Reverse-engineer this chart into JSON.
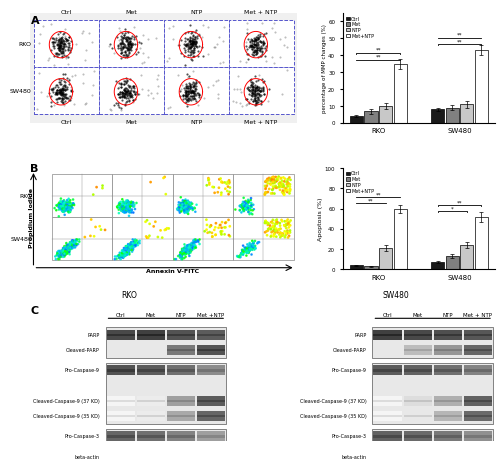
{
  "panel_A_label": "A",
  "panel_B_label": "B",
  "panel_C_label": "C",
  "mmp_groups": [
    "RKO",
    "SW480"
  ],
  "mmp_categories": [
    "Ctrl",
    "Met",
    "NTP",
    "Met+NTP"
  ],
  "mmp_values": {
    "RKO": [
      4,
      7,
      10,
      35
    ],
    "SW480": [
      8,
      9,
      11,
      43
    ]
  },
  "mmp_errors": {
    "RKO": [
      0.5,
      1.5,
      2,
      3
    ],
    "SW480": [
      1,
      1.5,
      2,
      3
    ]
  },
  "mmp_ylabel": "percentage of MMP changes (%)",
  "mmp_ylim": [
    0,
    65
  ],
  "apoptosis_groups": [
    "RKO",
    "SW480"
  ],
  "apoptosis_categories": [
    "Ctrl",
    "Met",
    "NTP",
    "Met+NTP"
  ],
  "apoptosis_values": {
    "RKO": [
      4,
      3,
      21,
      60
    ],
    "SW480": [
      7,
      13,
      24,
      52
    ]
  },
  "apoptosis_errors": {
    "RKO": [
      0.5,
      0.5,
      3,
      4
    ],
    "SW480": [
      1,
      2,
      3,
      5
    ]
  },
  "apoptosis_ylabel": "Apoptosis (%)",
  "apoptosis_ylim": [
    0,
    100
  ],
  "bar_colors": [
    "#1a1a1a",
    "#808080",
    "#c8c8c8",
    "#ffffff"
  ],
  "bar_edge_color": "#000000",
  "legend_labels": [
    "Ctrl",
    "Met",
    "NTP",
    "Met+NTP"
  ],
  "wb_conditions_rko": [
    "Ctrl",
    "Met",
    "NTP",
    "Met +NTP"
  ],
  "wb_conditions_sw480": [
    "Ctrl",
    "Met",
    "NTP",
    "Met + NTP"
  ],
  "flow_columns_A": [
    "Ctrl",
    "Met",
    "NTP",
    "Met + NTP"
  ],
  "flow_rows_A": [
    "RKO",
    "SW480"
  ],
  "annexin_xlabel": "Annexin V-FITC",
  "pi_ylabel": "Propidium Iodide",
  "background_color": "#ffffff"
}
